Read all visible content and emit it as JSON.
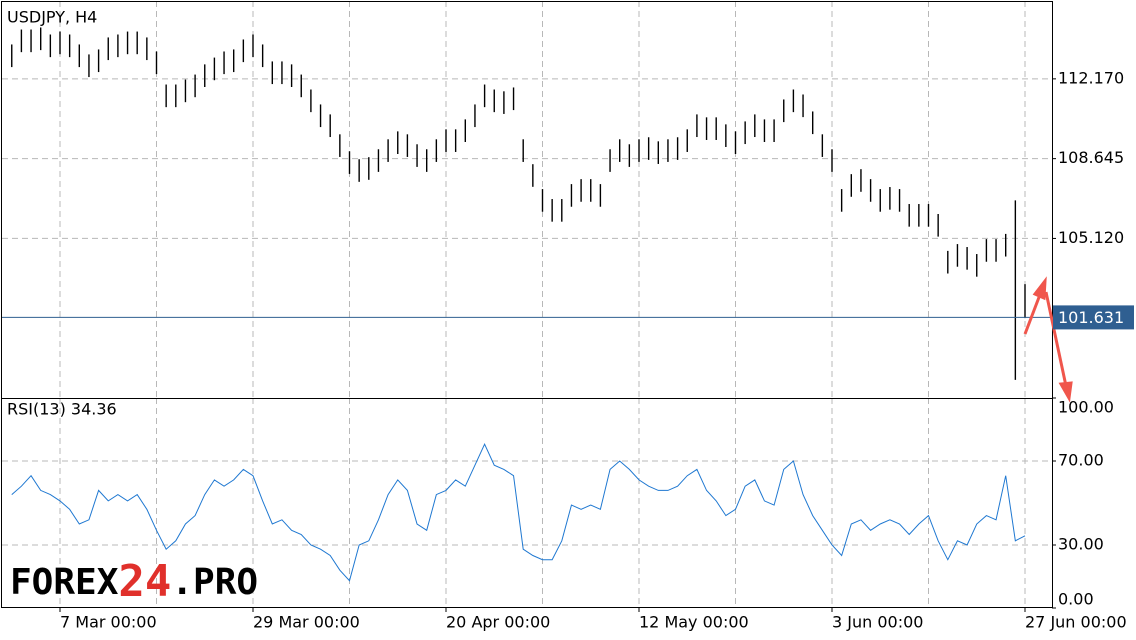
{
  "chart_data": [
    {
      "type": "ohlc",
      "title": "USDJPY, H4",
      "color": "#000000",
      "high": [
        113.69,
        114.35,
        114.35,
        114.44,
        114.13,
        114.26,
        114.13,
        113.69,
        113.25,
        113.47,
        114.0,
        114.13,
        114.26,
        114.26,
        114.0,
        113.38,
        111.92,
        111.92,
        112.14,
        112.36,
        112.81,
        113.11,
        113.38,
        113.47,
        113.91,
        114.13,
        113.69,
        112.94,
        112.94,
        112.81,
        112.36,
        111.7,
        111.04,
        110.6,
        109.72,
        108.97,
        108.62,
        108.71,
        109.06,
        109.5,
        109.85,
        109.72,
        109.28,
        109.06,
        109.5,
        109.94,
        109.94,
        110.38,
        111.04,
        111.92,
        111.7,
        111.62,
        111.79,
        109.5,
        108.4,
        107.3,
        106.86,
        106.86,
        107.52,
        107.74,
        107.74,
        107.52,
        109.06,
        109.5,
        109.28,
        109.5,
        109.59,
        109.41,
        109.5,
        109.59,
        109.94,
        110.6,
        110.47,
        110.47,
        110.16,
        109.85,
        110.29,
        110.6,
        110.38,
        110.38,
        111.26,
        111.7,
        111.48,
        110.73,
        109.72,
        109.06,
        107.3,
        107.96,
        108.18,
        107.74,
        107.3,
        107.39,
        107.3,
        106.64,
        106.64,
        106.64,
        106.2,
        104.57,
        104.87,
        104.74,
        104.43,
        105.09,
        105.09,
        105.32,
        106.8,
        103.1
      ],
      "low": [
        112.69,
        113.35,
        113.35,
        113.44,
        113.13,
        113.26,
        113.13,
        112.69,
        112.25,
        112.47,
        113.0,
        113.13,
        113.26,
        113.26,
        113.0,
        112.38,
        110.92,
        110.92,
        111.14,
        111.36,
        111.81,
        112.11,
        112.38,
        112.47,
        112.91,
        113.13,
        112.69,
        111.94,
        111.94,
        111.81,
        111.36,
        110.7,
        110.04,
        109.6,
        108.72,
        107.97,
        107.62,
        107.71,
        108.06,
        108.5,
        108.85,
        108.72,
        108.28,
        108.06,
        108.5,
        108.94,
        108.94,
        109.38,
        110.04,
        110.92,
        110.7,
        110.62,
        110.79,
        108.5,
        107.4,
        106.3,
        105.86,
        105.86,
        106.52,
        106.74,
        106.74,
        106.52,
        108.06,
        108.5,
        108.28,
        108.5,
        108.59,
        108.41,
        108.5,
        108.59,
        108.94,
        109.6,
        109.47,
        109.47,
        109.16,
        108.85,
        109.29,
        109.6,
        109.38,
        109.38,
        110.26,
        110.7,
        110.48,
        109.73,
        108.72,
        108.06,
        106.3,
        106.96,
        107.18,
        106.74,
        106.3,
        106.39,
        106.3,
        105.64,
        105.64,
        105.64,
        105.2,
        103.57,
        103.87,
        103.74,
        103.43,
        104.09,
        104.09,
        104.32,
        98.87,
        101.6
      ],
      "last_price": 101.631,
      "last_price_color": "#2f5f91",
      "ylim": [
        98.07,
        115.61
      ],
      "yticks": [
        {
          "value": 112.17,
          "label": "112.170"
        },
        108.645,
        {
          "value": 105.12,
          "label": "105.120"
        }
      ],
      "grid": true
    },
    {
      "type": "line",
      "title": "RSI(13) 34.36",
      "color": "#1f78d1",
      "categories": [
        null,
        null,
        null,
        null,
        null,
        "7 Mar 00:00",
        null,
        null,
        null,
        null,
        null,
        null,
        null,
        null,
        null,
        null,
        null,
        null,
        null,
        null,
        null,
        null,
        null,
        null,
        null,
        "29 Mar 00:00",
        null,
        null,
        null,
        null,
        null,
        null,
        null,
        null,
        null,
        null,
        null,
        null,
        null,
        null,
        null,
        null,
        null,
        null,
        null,
        "20 Apr 00:00",
        null,
        null,
        null,
        null,
        null,
        null,
        null,
        null,
        null,
        null,
        null,
        null,
        null,
        null,
        null,
        null,
        null,
        null,
        null,
        "12 May 00:00",
        null,
        null,
        null,
        null,
        null,
        null,
        null,
        null,
        null,
        null,
        null,
        null,
        null,
        null,
        null,
        null,
        null,
        null,
        null,
        "3 Jun 00:00",
        null,
        null,
        null,
        null,
        null,
        null,
        null,
        null,
        null,
        null,
        null,
        null,
        null,
        null,
        null,
        null,
        null,
        null,
        null,
        "27 Jun 00:00"
      ],
      "values": [
        54,
        58,
        63,
        56,
        54,
        51,
        47,
        40,
        42,
        56,
        51,
        54,
        51,
        54,
        47,
        37,
        28,
        32,
        40,
        44,
        54,
        61,
        58,
        61,
        66,
        63,
        51,
        40,
        42,
        37,
        35,
        30,
        28,
        25,
        18,
        13,
        30,
        32,
        42,
        54,
        61,
        56,
        40,
        37,
        54,
        56,
        61,
        58,
        68,
        78,
        68,
        66,
        63,
        28,
        25,
        23,
        23,
        32,
        49,
        47,
        49,
        47,
        66,
        70,
        66,
        61,
        58,
        56,
        56,
        58,
        63,
        66,
        56,
        51,
        44,
        47,
        58,
        61,
        51,
        49,
        66,
        70,
        54,
        44,
        37,
        30,
        25,
        40,
        42,
        37,
        40,
        42,
        40,
        35,
        40,
        44,
        32,
        23,
        32,
        30,
        40,
        44,
        42,
        63,
        32,
        34.36
      ],
      "ylim": [
        0,
        100
      ],
      "yticks": [
        {
          "value": 100,
          "label": "100.00"
        },
        {
          "value": 70,
          "label": "70.00"
        },
        {
          "value": 30,
          "label": "30.00"
        },
        {
          "value": 0,
          "label": "0.00"
        }
      ],
      "grid": true
    }
  ],
  "watermark": {
    "parts": [
      "FOREX",
      "24",
      ".PRO"
    ]
  }
}
